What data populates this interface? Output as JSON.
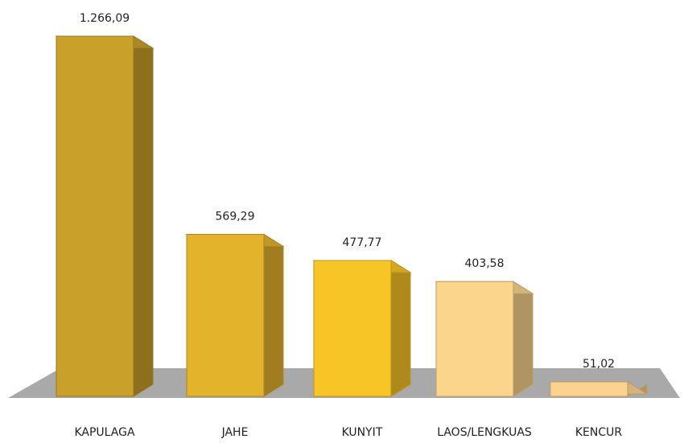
{
  "chart_data": {
    "type": "bar3d",
    "categories": [
      "KAPULAGA",
      "JAHE",
      "KUNYIT",
      "LAOS/LENGKUAS",
      "KENCUR"
    ],
    "values": [
      1266.09,
      569.29,
      477.77,
      403.58,
      51.02
    ],
    "value_labels": [
      "1.266,09",
      "569,29",
      "477,77",
      "403,58",
      "51,02"
    ],
    "colors": [
      "#c9a02a",
      "#e4b32c",
      "#f8c526",
      "#fbd58c",
      "#fbd38e"
    ]
  }
}
